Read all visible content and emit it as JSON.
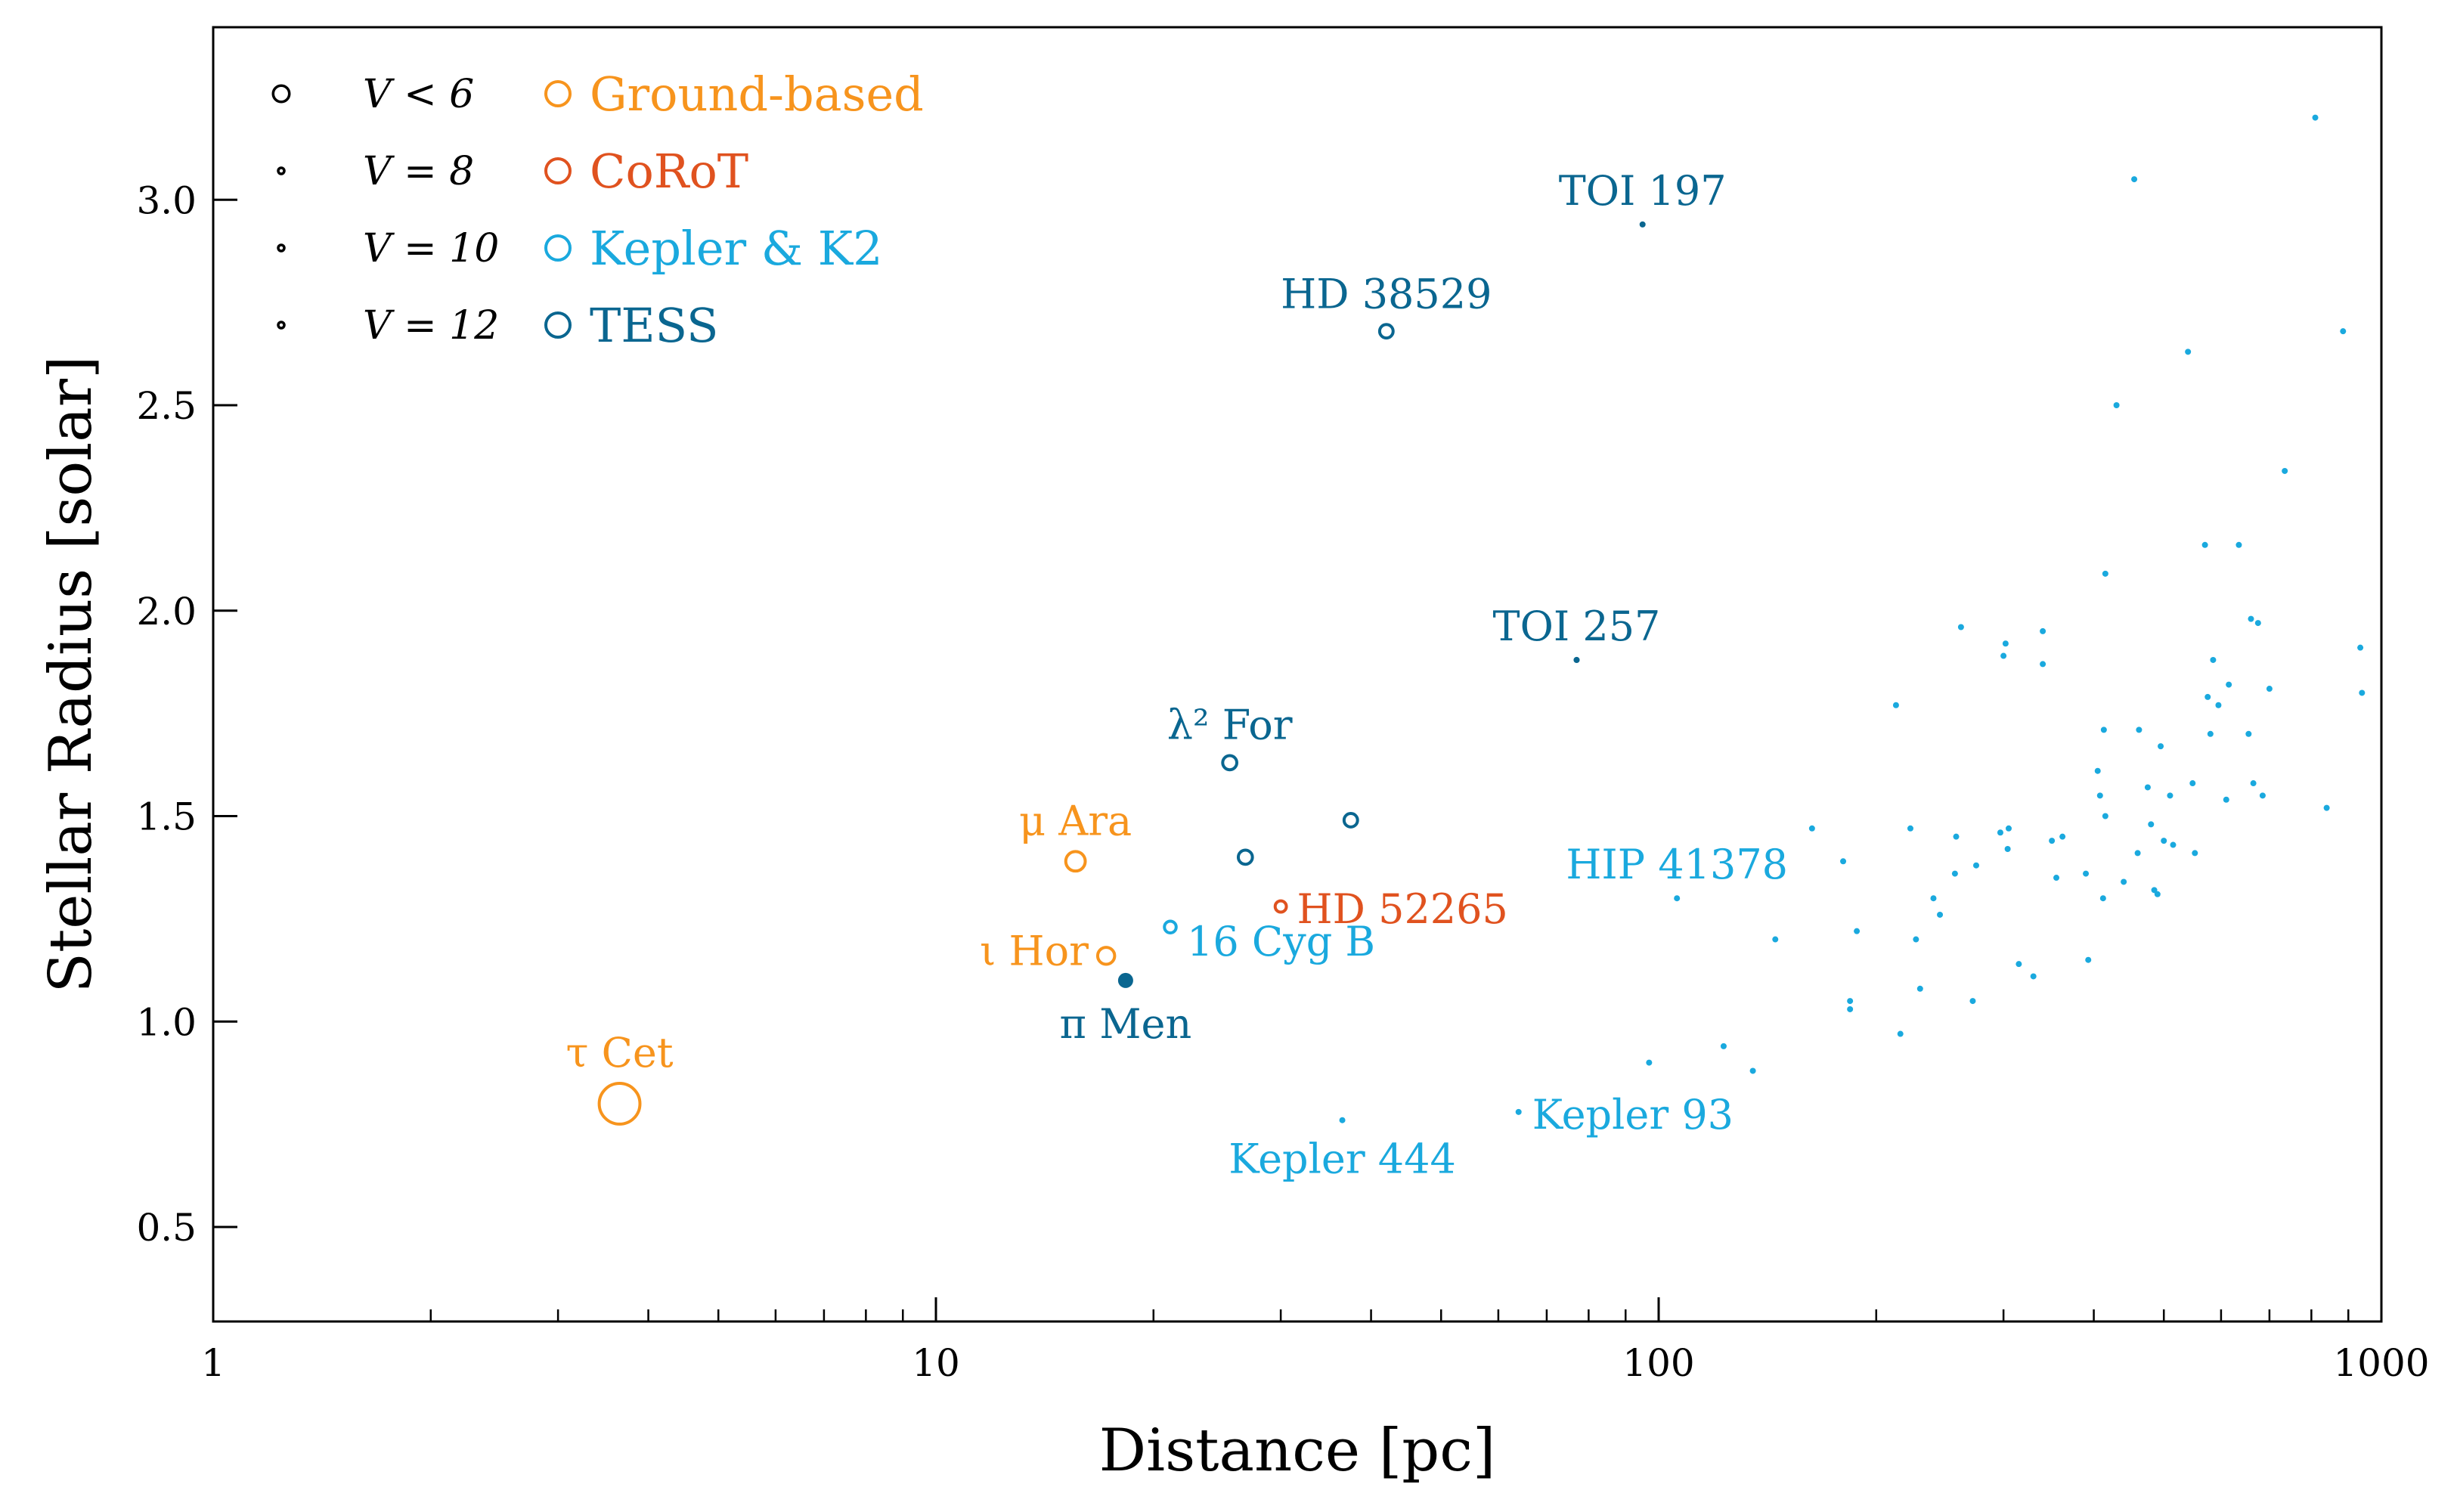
{
  "chart_data": {
    "type": "scatter",
    "title": "",
    "xlabel": "Distance [pc]",
    "ylabel": "Stellar Radius [solar]",
    "xscale": "log",
    "xlim": [
      1,
      1000
    ],
    "ylim": [
      0.27,
      3.42
    ],
    "x_ticks": [
      {
        "value": 1,
        "label": "1"
      },
      {
        "value": 10,
        "label": "10"
      },
      {
        "value": 100,
        "label": "100"
      },
      {
        "value": 1000,
        "label": "1000"
      }
    ],
    "y_ticks": [
      {
        "value": 0.5,
        "label": "0.5"
      },
      {
        "value": 1.0,
        "label": "1.0"
      },
      {
        "value": 1.5,
        "label": "1.5"
      },
      {
        "value": 2.0,
        "label": "2.0"
      },
      {
        "value": 2.5,
        "label": "2.5"
      },
      {
        "value": 3.0,
        "label": "3.0"
      }
    ],
    "colors": {
      "Ground-based": "#f7941d",
      "CoRoT": "#e0521f",
      "Kepler & K2": "#1aa9de",
      "TESS": "#0a6690",
      "axis": "#000000"
    },
    "legend_position": "top-left",
    "legend_sizes": [
      {
        "label": "V < 6",
        "vmag": 5.5
      },
      {
        "label": "V = 8",
        "vmag": 8
      },
      {
        "label": "V = 10",
        "vmag": 10
      },
      {
        "label": "V = 12",
        "vmag": 12
      }
    ],
    "legend_missions": [
      {
        "label": "Ground-based",
        "mission": "Ground-based"
      },
      {
        "label": "CoRoT",
        "mission": "CoRoT"
      },
      {
        "label": "Kepler & K2",
        "mission": "Kepler & K2"
      },
      {
        "label": "TESS",
        "mission": "TESS"
      }
    ],
    "named_stars": [
      {
        "name": "τ Cet",
        "distance": 3.65,
        "radius": 0.8,
        "mission": "Ground-based",
        "vmag": 3.5,
        "filled": false,
        "label_pos": "above"
      },
      {
        "name": "μ Ara",
        "distance": 15.6,
        "radius": 1.39,
        "mission": "Ground-based",
        "vmag": 5.1,
        "filled": false,
        "label_pos": "above"
      },
      {
        "name": "ι Hor",
        "distance": 17.2,
        "radius": 1.16,
        "mission": "Ground-based",
        "vmag": 5.4,
        "filled": false,
        "label_pos": "left"
      },
      {
        "name": "λ² For",
        "distance": 25.5,
        "radius": 1.63,
        "mission": "TESS",
        "vmag": 5.8,
        "filled": false,
        "label_pos": "above"
      },
      {
        "name": "",
        "distance": 26.8,
        "radius": 1.4,
        "mission": "TESS",
        "vmag": 5.8,
        "filled": false,
        "label_pos": "none"
      },
      {
        "name": "",
        "distance": 37.5,
        "radius": 1.49,
        "mission": "TESS",
        "vmag": 5.9,
        "filled": false,
        "label_pos": "none"
      },
      {
        "name": "HD 38529",
        "distance": 42.0,
        "radius": 2.68,
        "mission": "TESS",
        "vmag": 5.9,
        "filled": false,
        "label_pos": "above"
      },
      {
        "name": "16 Cyg B",
        "distance": 21.1,
        "radius": 1.23,
        "mission": "Kepler & K2",
        "vmag": 6.2,
        "filled": false,
        "label_pos": "below-right"
      },
      {
        "name": "HD 52265",
        "distance": 30.0,
        "radius": 1.28,
        "mission": "CoRoT",
        "vmag": 6.3,
        "filled": false,
        "label_pos": "right"
      },
      {
        "name": "π Men",
        "distance": 18.3,
        "radius": 1.1,
        "mission": "TESS",
        "vmag": 5.65,
        "filled": true,
        "label_pos": "below"
      },
      {
        "name": "TOI 197",
        "distance": 95.0,
        "radius": 2.94,
        "mission": "TESS",
        "vmag": 8.2,
        "filled": true,
        "label_pos": "above"
      },
      {
        "name": "TOI 257",
        "distance": 77.0,
        "radius": 1.88,
        "mission": "TESS",
        "vmag": 7.6,
        "filled": true,
        "label_pos": "above"
      },
      {
        "name": "HIP 41378",
        "distance": 106.0,
        "radius": 1.3,
        "mission": "Kepler & K2",
        "vmag": 8.9,
        "filled": true,
        "label_pos": "above"
      },
      {
        "name": "Kepler 93",
        "distance": 64.0,
        "radius": 0.78,
        "mission": "Kepler & K2",
        "vmag": 9.9,
        "filled": true,
        "label_pos": "right"
      },
      {
        "name": "Kepler 444",
        "distance": 36.5,
        "radius": 0.76,
        "mission": "Kepler & K2",
        "vmag": 9.4,
        "filled": true,
        "label_pos": "below"
      }
    ],
    "series": [
      {
        "name": "Kepler & K2 field stars",
        "mission": "Kepler & K2",
        "points": [
          [
            97,
            0.9,
            10.3
          ],
          [
            123,
            0.94,
            10.6
          ],
          [
            135,
            0.88,
            10.8
          ],
          [
            145,
            1.2,
            10.4
          ],
          [
            163,
            1.47,
            10.0
          ],
          [
            180,
            1.39,
            10.5
          ],
          [
            188,
            1.22,
            10.8
          ],
          [
            184,
            1.05,
            11.2
          ],
          [
            184,
            1.03,
            11.4
          ],
          [
            213,
            1.77,
            9.7
          ],
          [
            216,
            0.97,
            11.3
          ],
          [
            223,
            1.47,
            10.8
          ],
          [
            227,
            1.2,
            11.0
          ],
          [
            230,
            1.08,
            11.6
          ],
          [
            240,
            1.3,
            10.8
          ],
          [
            245,
            1.26,
            10.9
          ],
          [
            257,
            1.36,
            10.9
          ],
          [
            258,
            1.45,
            11.0
          ],
          [
            262,
            1.96,
            10.4
          ],
          [
            275,
            1.38,
            11.3
          ],
          [
            272,
            1.05,
            11.6
          ],
          [
            297,
            1.46,
            11.4
          ],
          [
            300,
            1.89,
            10.7
          ],
          [
            302,
            1.92,
            10.8
          ],
          [
            304,
            1.42,
            11.1
          ],
          [
            305,
            1.47,
            11.2
          ],
          [
            315,
            1.14,
            11.6
          ],
          [
            330,
            1.11,
            11.7
          ],
          [
            340,
            1.95,
            11.0
          ],
          [
            340,
            1.87,
            11.3
          ],
          [
            350,
            1.44,
            11.7
          ],
          [
            355,
            1.35,
            11.6
          ],
          [
            362,
            1.45,
            11.8
          ],
          [
            390,
            1.36,
            11.8
          ],
          [
            393,
            1.15,
            11.9
          ],
          [
            405,
            1.61,
            11.8
          ],
          [
            408,
            1.55,
            11.7
          ],
          [
            412,
            1.3,
            11.6
          ],
          [
            413,
            1.71,
            11.9
          ],
          [
            415,
            1.5,
            11.8
          ],
          [
            415,
            2.09,
            11.4
          ],
          [
            430,
            2.5,
            11.2
          ],
          [
            440,
            1.34,
            11.9
          ],
          [
            455,
            3.05,
            11.6
          ],
          [
            460,
            1.41,
            11.9
          ],
          [
            462,
            1.71,
            11.6
          ],
          [
            475,
            1.57,
            12.0
          ],
          [
            480,
            1.48,
            11.7
          ],
          [
            485,
            1.32,
            11.9
          ],
          [
            490,
            1.31,
            12.0
          ],
          [
            495,
            1.67,
            11.8
          ],
          [
            500,
            1.44,
            12.1
          ],
          [
            510,
            1.55,
            11.9
          ],
          [
            515,
            1.43,
            12.1
          ],
          [
            540,
            2.63,
            11.6
          ],
          [
            548,
            1.58,
            11.9
          ],
          [
            552,
            1.41,
            12.0
          ],
          [
            570,
            2.16,
            11.6
          ],
          [
            575,
            1.79,
            11.9
          ],
          [
            580,
            1.7,
            12.2
          ],
          [
            585,
            1.88,
            11.8
          ],
          [
            595,
            1.77,
            11.9
          ],
          [
            610,
            1.54,
            12.1
          ],
          [
            615,
            1.82,
            12.0
          ],
          [
            635,
            2.16,
            11.8
          ],
          [
            655,
            1.7,
            12.2
          ],
          [
            660,
            1.98,
            11.9
          ],
          [
            665,
            1.58,
            12.2
          ],
          [
            675,
            1.97,
            12.2
          ],
          [
            685,
            1.55,
            12.3
          ],
          [
            700,
            1.81,
            12.1
          ],
          [
            735,
            2.34,
            11.8
          ],
          [
            810,
            3.2,
            11.8
          ],
          [
            840,
            1.52,
            12.4
          ],
          [
            885,
            2.68,
            12.2
          ],
          [
            935,
            1.91,
            12.4
          ],
          [
            940,
            1.8,
            12.6
          ]
        ]
      }
    ]
  }
}
